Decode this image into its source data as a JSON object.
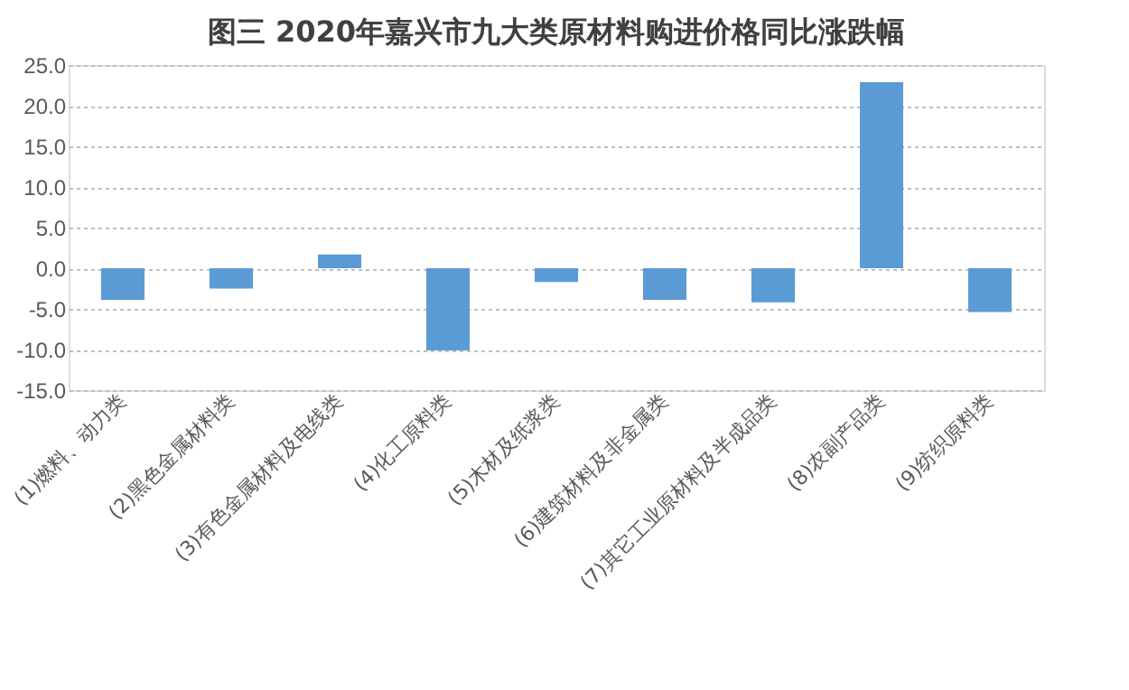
{
  "chart_data": {
    "type": "bar",
    "title": "图三 2020年嘉兴市九大类原材料购进价格同比涨跌幅",
    "categories": [
      "(1)燃料、动力类",
      "(2)黑色金属材料类",
      "(3)有色金属材料及电线类",
      "(4)化工原料类",
      "(5)木材及纸浆类",
      "(6)建筑材料及非金属类",
      "(7)其它工业原材料及半成品类",
      "(8)农副产品类",
      "(9)纺织原料类"
    ],
    "values": [
      -3.9,
      -2.5,
      1.7,
      -10.1,
      -1.7,
      -3.9,
      -4.2,
      22.9,
      -5.4
    ],
    "color": "#5b9bd5",
    "ylim": [
      -15,
      25
    ],
    "yticks": [
      {
        "value": -15,
        "label": "-15.0"
      },
      {
        "value": -10,
        "label": "-10.0"
      },
      {
        "value": -5,
        "label": "-5.0"
      },
      {
        "value": 0,
        "label": "0.0"
      },
      {
        "value": 5,
        "label": "5.0"
      },
      {
        "value": 10,
        "label": "10.0"
      },
      {
        "value": 15,
        "label": "15.0"
      },
      {
        "value": 20,
        "label": "20.0"
      },
      {
        "value": 25,
        "label": "25.0"
      }
    ],
    "grid": "y"
  }
}
